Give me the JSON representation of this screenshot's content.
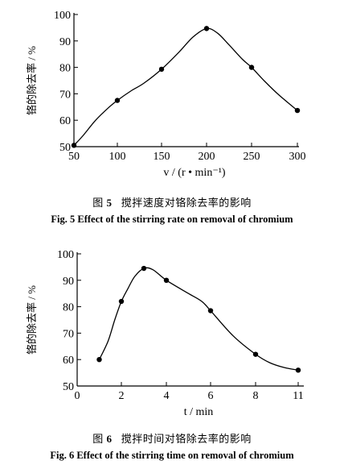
{
  "figures": [
    {
      "caption_cn_prefix": "图",
      "caption_num": "5",
      "caption_cn_text": "搅拌速度对铬除去率的影响",
      "caption_en": "Fig. 5   Effect of the stirring rate on removal of chromium"
    },
    {
      "caption_cn_prefix": "图",
      "caption_num": "6",
      "caption_cn_text": "搅拌时间对铬除去率的影响",
      "caption_en": "Fig. 6   Effect of the stirring time on removal of chromium"
    }
  ],
  "chart_data": [
    {
      "type": "line",
      "xlabel": "v / (r • min⁻¹)",
      "ylabel": "铬的除去率 / %",
      "xlim": [
        50,
        300
      ],
      "ylim": [
        50,
        100
      ],
      "xticks": [
        50,
        100,
        150,
        200,
        250,
        300
      ],
      "yticks": [
        50,
        60,
        70,
        80,
        90,
        100
      ],
      "points": [
        [
          50,
          50.5
        ],
        [
          100,
          67.5
        ],
        [
          150,
          79.3
        ],
        [
          200,
          94.7
        ],
        [
          250,
          80
        ],
        [
          300,
          63.7
        ]
      ],
      "curve": [
        [
          50,
          50.5
        ],
        [
          60,
          54
        ],
        [
          75,
          60
        ],
        [
          90,
          64.8
        ],
        [
          100,
          67.5
        ],
        [
          115,
          71
        ],
        [
          130,
          74
        ],
        [
          150,
          79.3
        ],
        [
          170,
          86
        ],
        [
          185,
          91.5
        ],
        [
          200,
          94.7
        ],
        [
          212,
          93
        ],
        [
          225,
          88.5
        ],
        [
          240,
          83
        ],
        [
          250,
          80
        ],
        [
          265,
          74.5
        ],
        [
          280,
          69.5
        ],
        [
          300,
          63.7
        ]
      ],
      "grid": false,
      "legend": "none"
    },
    {
      "type": "line",
      "xlabel": "t / min",
      "ylabel": "铬的除去率 / %",
      "xlim": [
        0,
        11
      ],
      "ylim": [
        50,
        100
      ],
      "xticks": [
        0,
        2,
        4,
        6,
        8,
        11
      ],
      "yticks": [
        50,
        60,
        70,
        80,
        90,
        100
      ],
      "points": [
        [
          1,
          60
        ],
        [
          2,
          82
        ],
        [
          3,
          94.5
        ],
        [
          4,
          90
        ],
        [
          6,
          78.5
        ],
        [
          8,
          62
        ],
        [
          11,
          56
        ]
      ],
      "curve": [
        [
          1,
          60
        ],
        [
          1.4,
          67
        ],
        [
          1.7,
          75
        ],
        [
          2,
          82
        ],
        [
          2.3,
          87
        ],
        [
          2.6,
          91.5
        ],
        [
          3,
          94.5
        ],
        [
          3.4,
          94
        ],
        [
          4,
          90
        ],
        [
          5,
          85
        ],
        [
          5.6,
          82
        ],
        [
          6,
          78.5
        ],
        [
          7,
          69
        ],
        [
          8,
          62
        ],
        [
          9,
          58.8
        ],
        [
          10,
          57
        ],
        [
          11,
          56
        ]
      ],
      "grid": false,
      "legend": "none"
    }
  ]
}
